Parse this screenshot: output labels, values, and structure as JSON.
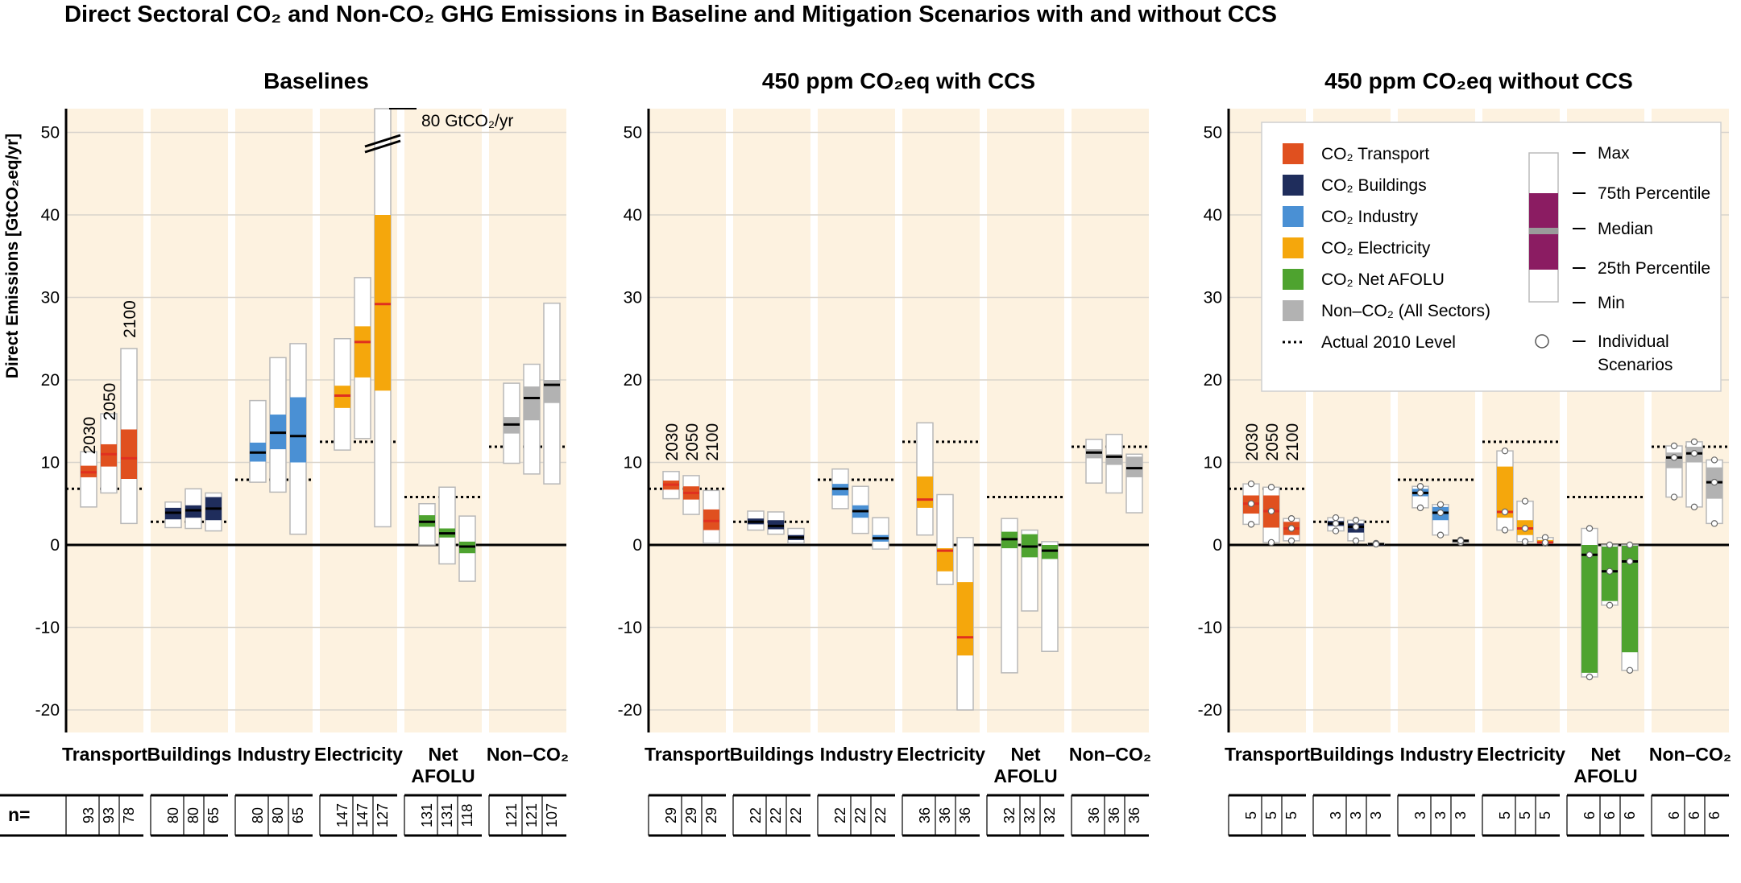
{
  "title": "Direct Sectoral CO₂ and Non-CO₂ GHG Emissions in Baseline and Mitigation Scenarios with and without CCS",
  "ylabel": "Direct Emissions [GtCO₂eq/yr]",
  "n_label": "n=",
  "break_note": "80 GtCO₂/yr",
  "year_labels": [
    "2030",
    "2050",
    "2100"
  ],
  "sectors": [
    "Transport",
    "Buildings",
    "Industry",
    "Electricity",
    "Net AFOLU",
    "Non–CO₂"
  ],
  "legend": {
    "items": [
      {
        "label": "CO₂ Transport",
        "color": "#e0501f"
      },
      {
        "label": "CO₂ Buildings",
        "color": "#1f2d5c"
      },
      {
        "label": "CO₂ Industry",
        "color": "#4a90d4"
      },
      {
        "label": "CO₂ Electricity",
        "color": "#f5a70c"
      },
      {
        "label": "CO₂ Net AFOLU",
        "color": "#4ea32f"
      },
      {
        "label": "Non–CO₂ (All Sectors)",
        "color": "#b2b2b2"
      }
    ],
    "dotted_label": "Actual 2010 Level",
    "box_labels": [
      "Max",
      "75th Percentile",
      "Median",
      "25th Percentile",
      "Min",
      "Individual Scenarios"
    ],
    "percentile_color": "#8b1c62",
    "median_color": "#9a9a9a"
  },
  "chart_data": {
    "type": "boxplot",
    "ylim": [
      -22,
      53
    ],
    "yticks": [
      50,
      40,
      30,
      20,
      10,
      0,
      -10,
      -20
    ],
    "colors": {
      "Transport": "#e0501f",
      "Buildings": "#1f2d5c",
      "Industry": "#4a90d4",
      "Electricity": "#f5a70c",
      "Net AFOLU": "#4ea32f",
      "Non–CO₂": "#b2b2b2"
    },
    "panel_bg": "#fdf2e0",
    "panels": [
      {
        "title": "Baselines",
        "actual_2010": [
          6.8,
          2.8,
          7.9,
          12.5,
          5.8,
          11.9
        ],
        "n": [
          [
            93,
            93,
            78
          ],
          [
            80,
            80,
            65
          ],
          [
            80,
            80,
            65
          ],
          [
            147,
            147,
            127
          ],
          [
            131,
            131,
            118
          ],
          [
            121,
            121,
            107
          ]
        ],
        "boxes": [
          [
            [
              4.6,
              8.2,
              8.8,
              9.6,
              11.3
            ],
            [
              6.3,
              9.5,
              11.0,
              12.2,
              15.9
            ],
            [
              2.6,
              8.0,
              10.5,
              14.0,
              23.8
            ]
          ],
          [
            [
              2.1,
              3.1,
              3.9,
              4.5,
              5.2
            ],
            [
              2.0,
              3.3,
              4.2,
              4.8,
              6.8
            ],
            [
              1.7,
              3.0,
              4.4,
              5.8,
              6.3
            ]
          ],
          [
            [
              7.6,
              10.1,
              11.2,
              12.4,
              17.5
            ],
            [
              6.4,
              11.6,
              13.6,
              15.8,
              22.7
            ],
            [
              1.3,
              10.0,
              13.2,
              17.9,
              24.4
            ]
          ],
          [
            [
              11.5,
              16.6,
              18.1,
              19.3,
              25.0
            ],
            [
              12.9,
              20.3,
              24.6,
              26.5,
              32.4
            ],
            [
              2.2,
              18.7,
              29.2,
              40.0,
              80.0
            ]
          ],
          [
            [
              0.0,
              2.2,
              2.8,
              3.6,
              5.0
            ],
            [
              -2.3,
              0.9,
              1.4,
              2.0,
              7.0
            ],
            [
              -4.4,
              -1.0,
              -0.2,
              0.4,
              3.5
            ]
          ],
          [
            [
              9.9,
              13.5,
              14.6,
              15.5,
              19.6
            ],
            [
              8.6,
              15.1,
              17.8,
              19.2,
              21.9
            ],
            [
              7.4,
              17.2,
              19.4,
              20.0,
              29.3
            ]
          ]
        ]
      },
      {
        "title": "450 ppm CO₂eq with CCS",
        "actual_2010": [
          6.8,
          2.8,
          7.9,
          12.5,
          5.8,
          11.9
        ],
        "n": [
          [
            29,
            29,
            29
          ],
          [
            22,
            22,
            22
          ],
          [
            22,
            22,
            22
          ],
          [
            36,
            36,
            36
          ],
          [
            32,
            32,
            32
          ],
          [
            36,
            36,
            36
          ]
        ],
        "boxes": [
          [
            [
              5.6,
              6.7,
              7.3,
              7.8,
              8.9
            ],
            [
              3.7,
              5.5,
              6.3,
              7.1,
              8.4
            ],
            [
              0.2,
              1.8,
              2.9,
              4.3,
              6.6
            ]
          ],
          [
            [
              1.8,
              2.5,
              2.8,
              3.2,
              4.1
            ],
            [
              1.3,
              1.9,
              2.3,
              3.0,
              4.0
            ],
            [
              0.2,
              0.6,
              0.9,
              1.2,
              2.0
            ]
          ],
          [
            [
              4.4,
              6.0,
              6.8,
              7.4,
              9.2
            ],
            [
              1.4,
              3.3,
              4.1,
              4.8,
              7.1
            ],
            [
              -0.5,
              0.4,
              0.8,
              1.2,
              3.3
            ]
          ],
          [
            [
              1.2,
              4.5,
              5.5,
              8.3,
              14.8
            ],
            [
              -4.8,
              -3.2,
              -0.7,
              -0.4,
              6.1
            ],
            [
              -20.0,
              -13.4,
              -11.2,
              -4.5,
              0.9
            ]
          ],
          [
            [
              -15.5,
              -0.4,
              0.7,
              1.6,
              3.2
            ],
            [
              -8.0,
              -1.5,
              -0.2,
              1.3,
              1.8
            ],
            [
              -12.9,
              -1.7,
              -0.7,
              0.0,
              0.4
            ]
          ],
          [
            [
              7.5,
              10.5,
              11.2,
              11.6,
              12.8
            ],
            [
              6.3,
              9.7,
              10.7,
              11.0,
              13.4
            ],
            [
              3.9,
              8.2,
              9.3,
              10.7,
              11.0
            ]
          ]
        ]
      },
      {
        "title": "450 ppm CO₂eq without CCS",
        "actual_2010": [
          6.8,
          2.8,
          7.9,
          12.5,
          5.8,
          11.9
        ],
        "n": [
          [
            5,
            5,
            5
          ],
          [
            3,
            3,
            3
          ],
          [
            3,
            3,
            3
          ],
          [
            5,
            5,
            5
          ],
          [
            6,
            6,
            6
          ],
          [
            6,
            6,
            6
          ]
        ],
        "boxes": [
          [
            [
              2.5,
              3.8,
              5.0,
              6.0,
              7.4
            ],
            [
              0.3,
              2.1,
              4.1,
              6.0,
              7.0
            ],
            [
              0.5,
              1.2,
              2.0,
              2.8,
              3.2
            ]
          ],
          [
            [
              1.7,
              2.3,
              2.6,
              2.9,
              3.3
            ],
            [
              0.5,
              1.5,
              2.2,
              2.6,
              3.0
            ],
            [
              0.1,
              0.1,
              0.1,
              0.1,
              0.2
            ]
          ],
          [
            [
              4.5,
              5.9,
              6.3,
              6.8,
              7.1
            ],
            [
              1.2,
              3.0,
              3.9,
              4.6,
              4.9
            ],
            [
              0.3,
              0.4,
              0.5,
              0.6,
              0.6
            ]
          ],
          [
            [
              1.8,
              3.3,
              4.0,
              9.5,
              11.4
            ],
            [
              0.4,
              1.2,
              2.0,
              3.0,
              5.3
            ],
            [
              0.2,
              0.3,
              0.3,
              0.6,
              0.9
            ]
          ],
          [
            [
              -16.0,
              -15.5,
              -1.2,
              0.0,
              2.0
            ],
            [
              -7.3,
              -6.8,
              -3.2,
              -0.2,
              0.0
            ],
            [
              -15.2,
              -13.0,
              -2.0,
              -0.1,
              0.0
            ]
          ],
          [
            [
              5.8,
              9.3,
              10.6,
              11.2,
              12.0
            ],
            [
              4.6,
              10.0,
              11.1,
              11.9,
              12.5
            ],
            [
              2.6,
              5.6,
              7.6,
              9.4,
              10.3
            ]
          ]
        ]
      }
    ]
  }
}
